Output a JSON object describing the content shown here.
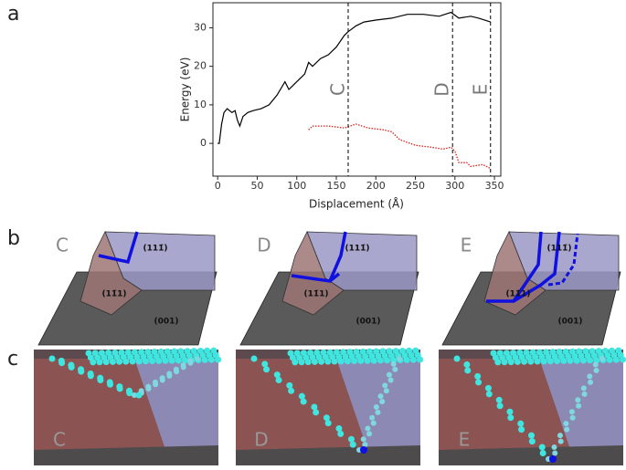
{
  "chart_data": {
    "type": "line",
    "x_label": "Displacement (Å)",
    "y_label": "Energy (eV)",
    "xlim": [
      -6,
      358
    ],
    "ylim": [
      -8.5,
      36.5
    ],
    "xticks": [
      0,
      50,
      100,
      150,
      200,
      250,
      300,
      350
    ],
    "yticks": [
      0,
      10,
      20,
      30
    ],
    "series": [
      {
        "color": "#000000",
        "style": "solid",
        "x": [
          0,
          2,
          5,
          8,
          12,
          18,
          22,
          25,
          28,
          32,
          38,
          45,
          55,
          65,
          75,
          85,
          90,
          95,
          100,
          110,
          115,
          120,
          130,
          140,
          150,
          160,
          165,
          175,
          185,
          200,
          220,
          240,
          260,
          280,
          295,
          305,
          320,
          330,
          345
        ],
        "values": [
          0,
          0,
          5,
          8,
          9,
          8,
          8.5,
          6,
          4.5,
          7,
          8,
          8.5,
          9,
          10,
          12.5,
          16,
          14,
          15,
          16,
          18,
          21,
          20,
          22,
          23,
          25,
          28,
          29,
          30.5,
          31.5,
          32,
          32.5,
          33.5,
          33.5,
          33,
          34,
          32.5,
          33,
          32.5,
          31.5
        ]
      },
      {
        "color": "#e0201b",
        "style": "dotted",
        "x": [
          115,
          120,
          140,
          160,
          175,
          190,
          210,
          220,
          230,
          250,
          270,
          285,
          295,
          300,
          305,
          315,
          320,
          335,
          345
        ],
        "values": [
          3.5,
          4.5,
          4.5,
          4,
          5,
          4,
          3.5,
          3,
          1,
          -0.5,
          -1,
          -1.5,
          -1,
          -2,
          -5,
          -5,
          -6,
          -5.5,
          -6.5
        ]
      }
    ],
    "markers": [
      {
        "value": 165,
        "label": "C"
      },
      {
        "value": 297,
        "label": "D"
      },
      {
        "value": 345,
        "label": "E"
      }
    ]
  },
  "figure": {
    "panel_labels": [
      "a",
      "b",
      "c"
    ],
    "facets": [
      {
        "label": "C",
        "faces": [
          "(111̄)",
          "(11̄1)",
          "(001)"
        ]
      },
      {
        "label": "D",
        "faces": [
          "(111̄)",
          "(11̄1)",
          "(001)"
        ]
      },
      {
        "label": "E",
        "faces": [
          "(111̄)",
          "(11̄1)",
          "(001)"
        ]
      }
    ],
    "snapshots": [
      "C",
      "D",
      "E"
    ]
  }
}
